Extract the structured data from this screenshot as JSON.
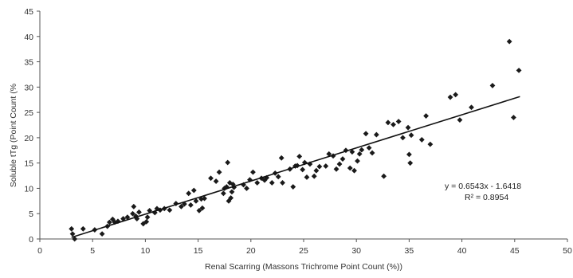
{
  "chart_data": {
    "type": "scatter",
    "title": "",
    "xlabel": "Renal Scarring (Massons Trichrome Point Count (%))",
    "ylabel": "Soluble tTg (Point Count (%",
    "xlim": [
      0,
      50
    ],
    "ylim": [
      0,
      45
    ],
    "x_ticks": [
      0,
      5,
      10,
      15,
      20,
      25,
      30,
      35,
      40,
      45,
      50
    ],
    "y_ticks": [
      0,
      5,
      10,
      15,
      20,
      25,
      30,
      35,
      40,
      45
    ],
    "grid": false,
    "legend": "none",
    "marker_color": "#1a1a1a",
    "trendline": {
      "slope": 0.6543,
      "intercept": -1.6418,
      "x_range": [
        3,
        45.5
      ],
      "equation_label": "y = 0.6543x - 1.6418",
      "r2_label": "R² = 0.8954"
    },
    "series": [
      {
        "x": [
          3.0,
          3.1,
          3.3,
          4.1,
          5.2,
          5.9,
          6.4,
          6.6,
          6.9,
          7.1,
          7.4,
          7.9,
          8.3,
          8.8,
          8.9,
          9.1,
          9.2,
          9.4,
          9.8,
          10.1,
          10.2,
          10.4,
          10.9,
          11.1,
          11.4,
          11.8,
          12.3,
          12.9,
          13.4,
          13.7,
          14.1,
          14.3,
          14.6,
          14.8,
          15.1,
          15.3,
          15.4,
          15.6,
          16.2,
          16.7,
          17.0,
          17.4,
          17.5,
          17.7,
          17.8,
          17.9,
          18.0,
          18.1,
          18.2,
          18.3,
          18.4,
          19.3,
          19.6,
          19.9,
          20.2,
          20.6,
          21.0,
          21.3,
          21.5,
          22.0,
          22.3,
          22.6,
          22.9,
          23.0,
          23.7,
          24.0,
          24.2,
          24.4,
          24.6,
          24.9,
          25.1,
          25.3,
          25.6,
          26.0,
          26.2,
          26.5,
          27.1,
          27.4,
          27.8,
          28.1,
          28.4,
          28.7,
          29.0,
          29.4,
          29.6,
          29.8,
          30.1,
          30.3,
          30.5,
          30.9,
          31.2,
          31.5,
          31.9,
          32.6,
          33.0,
          33.5,
          34.0,
          34.4,
          34.9,
          35.0,
          35.1,
          35.2,
          36.2,
          36.6,
          37.0,
          38.9,
          39.4,
          39.8,
          40.9,
          42.9,
          44.5,
          44.9,
          45.4
        ],
        "y": [
          2.0,
          1.0,
          0.0,
          2.0,
          1.8,
          1.0,
          2.5,
          3.3,
          3.9,
          3.3,
          3.5,
          4.0,
          4.3,
          5.0,
          6.4,
          4.5,
          4.0,
          5.3,
          3.0,
          3.4,
          4.3,
          5.6,
          5.2,
          6.0,
          5.7,
          6.0,
          5.7,
          7.0,
          6.4,
          6.9,
          9.0,
          6.7,
          9.6,
          7.5,
          5.6,
          7.9,
          6.1,
          8.0,
          12.0,
          11.4,
          13.2,
          9.0,
          10.0,
          10.3,
          15.1,
          7.5,
          11.1,
          8.1,
          9.3,
          10.8,
          10.2,
          10.7,
          10.0,
          11.7,
          13.2,
          11.1,
          12.0,
          11.6,
          12.1,
          11.1,
          13.0,
          12.3,
          16.0,
          11.1,
          13.8,
          10.3,
          14.4,
          14.5,
          16.3,
          13.7,
          15.1,
          12.2,
          14.8,
          12.4,
          13.5,
          14.3,
          14.4,
          16.8,
          16.4,
          13.8,
          14.8,
          15.8,
          17.5,
          14.0,
          17.2,
          13.5,
          15.4,
          16.8,
          17.6,
          20.8,
          18.0,
          17.0,
          20.6,
          12.4,
          23.0,
          22.6,
          23.2,
          20.0,
          22.0,
          16.7,
          15.0,
          20.5,
          19.6,
          24.3,
          18.7,
          28.0,
          28.5,
          23.5,
          26.0,
          30.3,
          39.0,
          24.0,
          33.3
        ]
      }
    ]
  }
}
